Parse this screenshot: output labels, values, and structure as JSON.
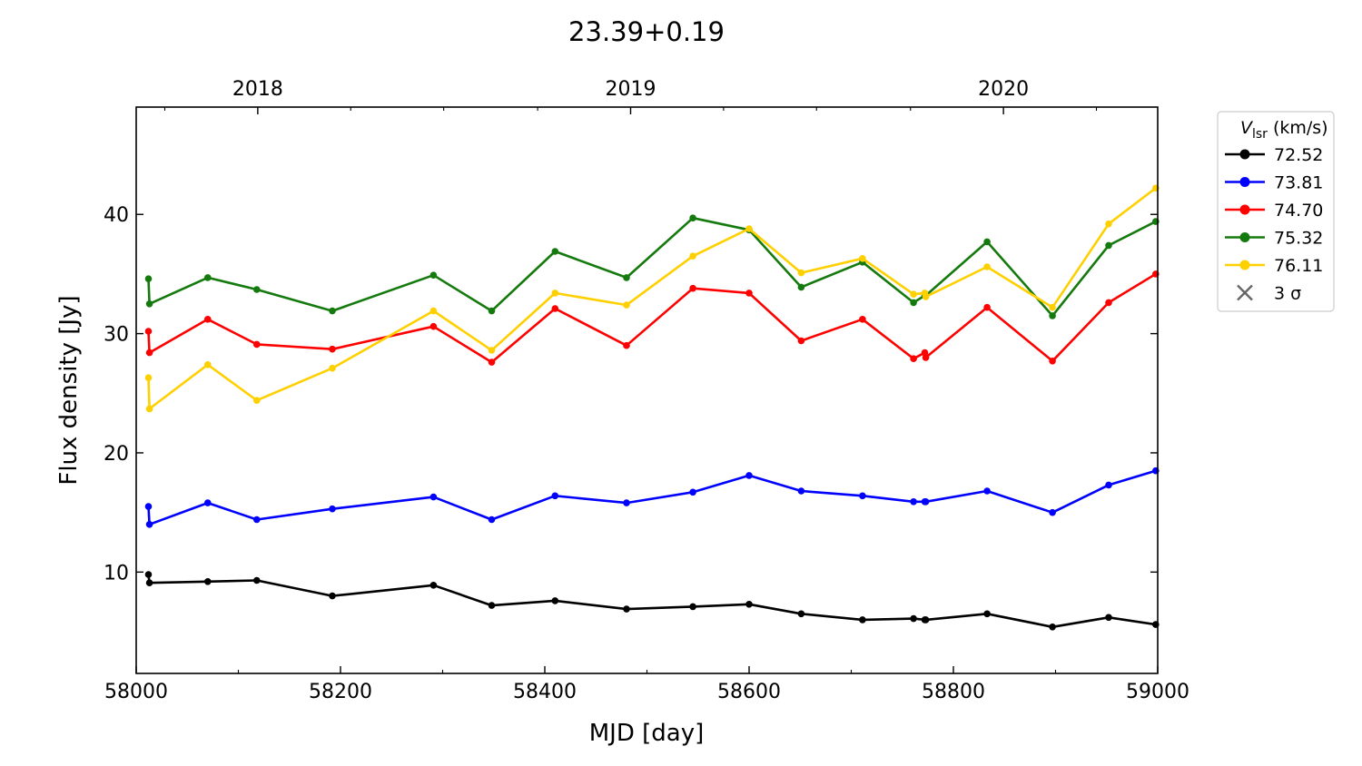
{
  "chart_data": {
    "type": "line",
    "title": "23.39+0.19",
    "xlabel": "MJD [day]",
    "ylabel": "Flux density [Jy]",
    "xlim": [
      58000,
      59000
    ],
    "ylim": [
      1.5,
      49
    ],
    "x_ticks": [
      58000,
      58200,
      58400,
      58600,
      58800,
      59000
    ],
    "y_ticks": [
      10,
      20,
      30,
      40
    ],
    "top_axis": {
      "labels": [
        "2018",
        "2019",
        "2020"
      ],
      "mjd_positions": [
        58119,
        58484,
        58849
      ]
    },
    "grid": false,
    "legend": {
      "placement": "outside-right",
      "title_main": "V",
      "title_sub": "lsr",
      "title_unit": "(km/s)",
      "limit_marker_label": "3 σ",
      "limit_marker_color": "#666666"
    },
    "x": [
      58012,
      58013,
      58070,
      58118,
      58192,
      58291,
      58348,
      58410,
      58480,
      58545,
      58600,
      58651,
      58711,
      58761,
      58772,
      58773,
      58833,
      58897,
      58952,
      58998
    ],
    "series": [
      {
        "name": "72.52",
        "color": "#000000",
        "values": [
          9.8,
          9.1,
          9.2,
          9.3,
          8.0,
          8.9,
          7.2,
          7.6,
          6.9,
          7.1,
          7.3,
          6.5,
          6.0,
          6.1,
          6.0,
          6.0,
          6.5,
          5.4,
          6.2,
          5.6
        ]
      },
      {
        "name": "73.81",
        "color": "#0000ff",
        "values": [
          15.5,
          14.0,
          15.8,
          14.4,
          15.3,
          16.3,
          14.4,
          16.4,
          15.8,
          16.7,
          18.1,
          16.8,
          16.4,
          15.9,
          15.9,
          15.9,
          16.8,
          15.0,
          17.3,
          18.5
        ]
      },
      {
        "name": "74.70",
        "color": "#ff0000",
        "values": [
          30.2,
          28.4,
          31.2,
          29.1,
          28.7,
          30.6,
          27.6,
          32.1,
          29.0,
          33.8,
          33.4,
          29.4,
          31.2,
          27.9,
          28.4,
          28.0,
          32.2,
          27.7,
          32.6,
          35.0
        ]
      },
      {
        "name": "75.32",
        "color": "#157a0d",
        "values": [
          34.6,
          32.5,
          34.7,
          33.7,
          31.9,
          34.9,
          31.9,
          36.9,
          34.7,
          39.7,
          38.7,
          33.9,
          36.0,
          32.6,
          33.2,
          33.2,
          37.7,
          31.5,
          37.4,
          39.4
        ]
      },
      {
        "name": "76.11",
        "color": "#ffd000",
        "values": [
          26.3,
          23.7,
          27.4,
          24.4,
          27.1,
          31.9,
          28.6,
          33.4,
          32.4,
          36.5,
          38.8,
          35.1,
          36.3,
          33.3,
          33.4,
          33.1,
          35.6,
          32.2,
          39.2,
          42.2
        ]
      }
    ]
  }
}
